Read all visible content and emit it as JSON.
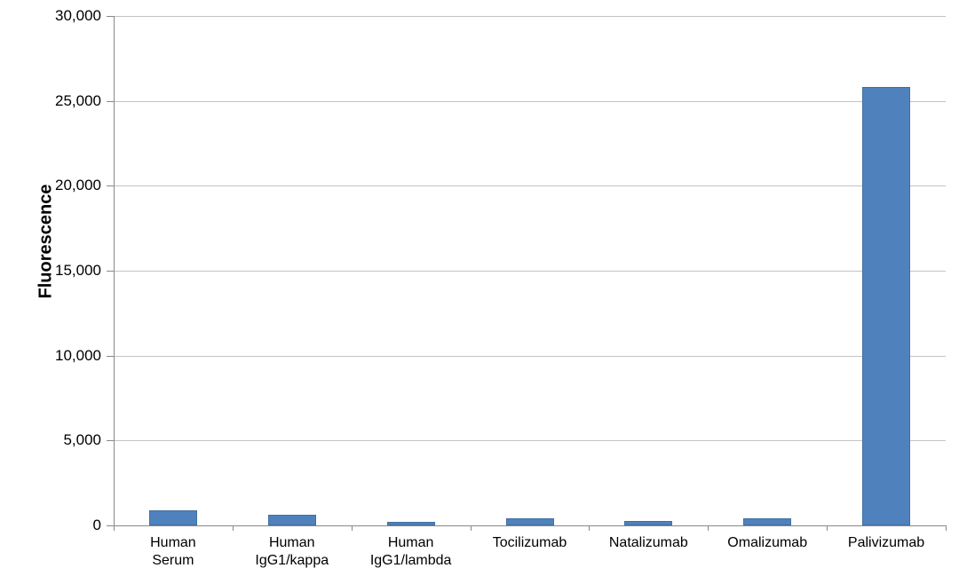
{
  "chart_data": {
    "type": "bar",
    "title": "",
    "categories": [
      "Human\nSerum",
      "Human\nIgG1/kappa",
      "Human\nIgG1/lambda",
      "Tocilizumab",
      "Natalizumab",
      "Omalizumab",
      "Palivizumab"
    ],
    "values": [
      870,
      640,
      230,
      420,
      260,
      420,
      25800
    ],
    "xlabel": "",
    "ylabel": "Fluorescence",
    "ylim": [
      0,
      30000
    ],
    "ytick_step": 5000,
    "ytick_labels": [
      "0",
      "5,000",
      "10,000",
      "15,000",
      "20,000",
      "25,000",
      "30,000"
    ],
    "grid": true,
    "legend": false,
    "colors": {
      "bar_fill": "#4F81BD",
      "bar_border": "#41709F",
      "gridline": "#C3C3C3",
      "axis": "#898989",
      "text": "#000000",
      "background": "#FFFFFF"
    }
  }
}
